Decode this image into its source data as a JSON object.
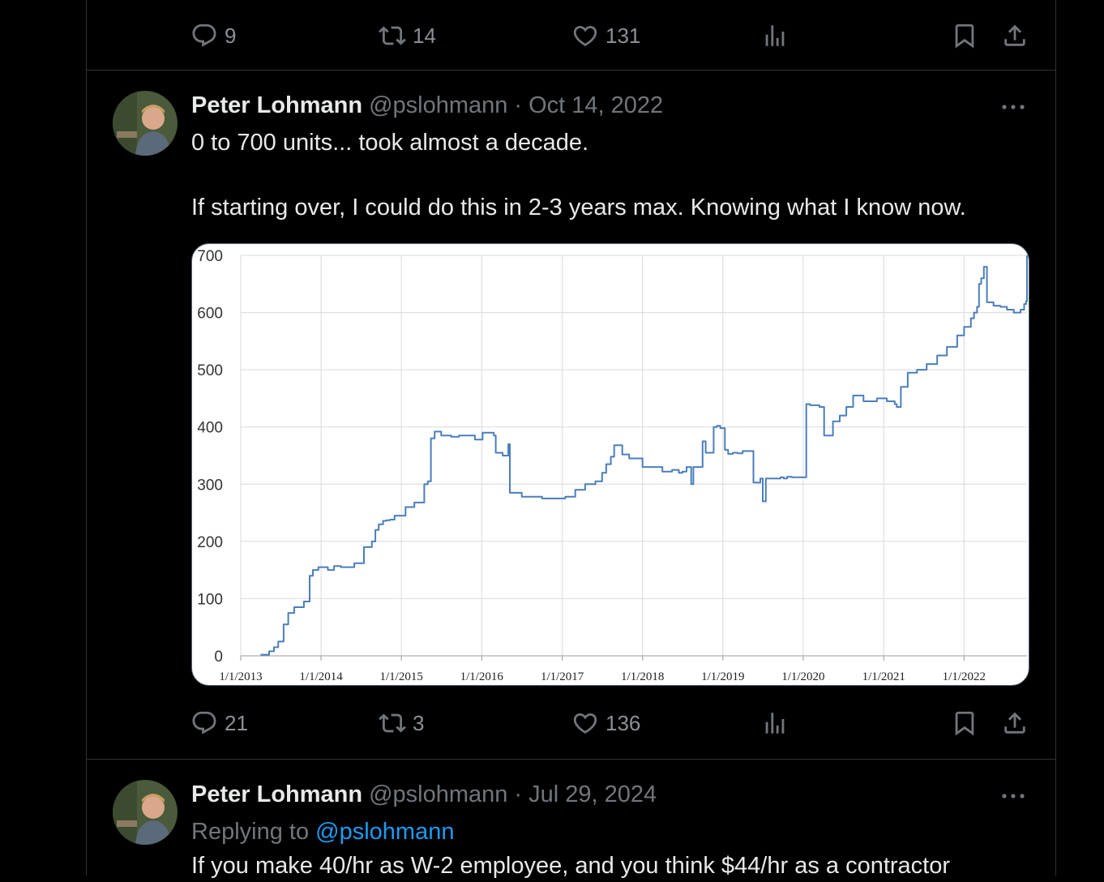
{
  "top_actions": {
    "replies": "9",
    "retweets": "14",
    "likes": "131"
  },
  "tweet1": {
    "name": "Peter Lohmann",
    "handle": "@pslohmann",
    "dot": "·",
    "date": "Oct 14, 2022",
    "line1": "0 to 700 units... took almost a decade.",
    "line2": "If starting over, I could do this in 2-3 years max. Knowing what I know now.",
    "replies": "21",
    "retweets": "3",
    "likes": "136"
  },
  "tweet2": {
    "name": "Peter Lohmann",
    "handle": "@pslohmann",
    "dot": "·",
    "date": "Jul 29, 2024",
    "replying_prefix": "Replying to",
    "replying_to": "@pslohmann",
    "line1": "If you make 40/hr as W-2 employee, and you think $44/hr as a contractor"
  },
  "icons": [
    "reply-icon",
    "retweet-icon",
    "like-icon",
    "views-icon",
    "bookmark-icon",
    "share-icon",
    "more-icon"
  ],
  "colors": {
    "background": "#000000",
    "text": "#e7e9ea",
    "muted": "#71767b",
    "link": "#1d9bf0",
    "border": "#2f3336",
    "line": "#4a7ebb"
  },
  "chart_data": {
    "type": "line",
    "title": "",
    "xlabel": "",
    "ylabel": "",
    "ylim": [
      0,
      700
    ],
    "yticks": [
      0,
      100,
      200,
      300,
      400,
      500,
      600,
      700
    ],
    "xtick_labels": [
      "1/1/2013",
      "1/1/2014",
      "1/1/2015",
      "1/1/2016",
      "1/1/2017",
      "1/1/2018",
      "1/1/2019",
      "1/1/2020",
      "1/1/2021",
      "1/1/2022"
    ],
    "xlim": [
      "2013-01-01",
      "2022-10-14"
    ],
    "grid": true,
    "series": [
      {
        "x": [
          "2013-04-01",
          "2013-05-10",
          "2013-06-01",
          "2013-06-20",
          "2013-07-15",
          "2013-08-05",
          "2013-09-01",
          "2013-10-15",
          "2013-11-10",
          "2013-11-25",
          "2013-12-20",
          "2014-02-01",
          "2014-03-01",
          "2014-04-01",
          "2014-06-01",
          "2014-07-15",
          "2014-08-20",
          "2014-09-05",
          "2014-09-20",
          "2014-10-10",
          "2014-10-25",
          "2014-11-10",
          "2014-12-01",
          "2015-01-20",
          "2015-03-01",
          "2015-04-15",
          "2015-05-01",
          "2015-05-15",
          "2015-06-01",
          "2015-07-01",
          "2015-07-20",
          "2015-08-15",
          "2015-09-20",
          "2015-12-01",
          "2016-01-05",
          "2016-02-01",
          "2016-02-25",
          "2016-03-05",
          "2016-04-05",
          "2016-05-01",
          "2016-05-08",
          "2016-07-01",
          "2016-08-01",
          "2016-10-01",
          "2016-12-01",
          "2017-01-15",
          "2017-03-01",
          "2017-04-15",
          "2017-06-01",
          "2017-07-01",
          "2017-07-20",
          "2017-08-10",
          "2017-08-25",
          "2017-10-01",
          "2017-11-01",
          "2018-01-01",
          "2018-04-01",
          "2018-05-15",
          "2018-06-15",
          "2018-07-01",
          "2018-07-20",
          "2018-08-10",
          "2018-08-20",
          "2018-10-01",
          "2018-10-15",
          "2018-11-20",
          "2018-12-05",
          "2018-12-20",
          "2019-01-10",
          "2019-01-25",
          "2019-02-15",
          "2019-03-10",
          "2019-04-01",
          "2019-05-20",
          "2019-06-20",
          "2019-07-01",
          "2019-07-15",
          "2019-09-01",
          "2019-09-20",
          "2019-10-05",
          "2019-10-20",
          "2019-11-10",
          "2019-12-25",
          "2020-01-15",
          "2020-02-01",
          "2020-03-15",
          "2020-04-05",
          "2020-05-15",
          "2020-06-15",
          "2020-07-15",
          "2020-08-15",
          "2020-10-01",
          "2020-12-01",
          "2021-01-15",
          "2021-02-20",
          "2021-03-01",
          "2021-03-20",
          "2021-04-20",
          "2021-06-01",
          "2021-07-15",
          "2021-09-01",
          "2021-10-15",
          "2021-12-01",
          "2022-01-01",
          "2022-02-01",
          "2022-02-15",
          "2022-03-01",
          "2022-03-10",
          "2022-03-20",
          "2022-04-01",
          "2022-04-15",
          "2022-05-15",
          "2022-06-15",
          "2022-07-15",
          "2022-08-15",
          "2022-09-15",
          "2022-10-01",
          "2022-10-10",
          "2022-10-14"
        ],
        "y": [
          2,
          8,
          15,
          25,
          55,
          75,
          85,
          95,
          140,
          150,
          155,
          150,
          157,
          155,
          162,
          190,
          200,
          220,
          230,
          236,
          237,
          238,
          245,
          260,
          268,
          300,
          305,
          380,
          392,
          385,
          385,
          383,
          385,
          378,
          390,
          390,
          385,
          355,
          350,
          370,
          285,
          278,
          278,
          275,
          275,
          278,
          290,
          300,
          305,
          320,
          335,
          348,
          368,
          352,
          345,
          330,
          322,
          325,
          320,
          322,
          330,
          300,
          330,
          375,
          355,
          400,
          402,
          398,
          360,
          353,
          355,
          354,
          358,
          303,
          310,
          270,
          310,
          310,
          312,
          310,
          313,
          312,
          312,
          440,
          438,
          435,
          385,
          410,
          420,
          435,
          455,
          445,
          450,
          445,
          440,
          435,
          470,
          495,
          500,
          510,
          525,
          540,
          560,
          575,
          590,
          600,
          610,
          650,
          660,
          680,
          618,
          612,
          610,
          605,
          600,
          605,
          615,
          620,
          700
        ]
      }
    ]
  }
}
